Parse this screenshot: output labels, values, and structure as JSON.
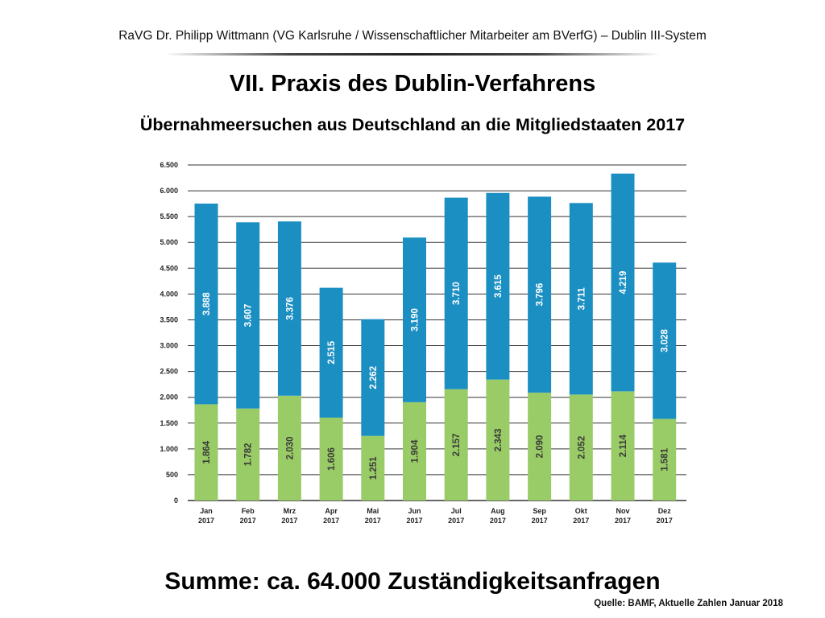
{
  "header": {
    "text": "RaVG Dr. Philipp Wittmann (VG Karlsruhe / Wissenschaftlicher Mitarbeiter am BVerfG) – Dublin III-System"
  },
  "title": "VII. Praxis des Dublin-Verfahrens",
  "subtitle": "Übernahmeersuchen aus Deutschland an die Mitgliedstaaten 2017",
  "summary": "Summe: ca. 64.000 Zuständigkeitsanfragen",
  "source": "Quelle: BAMF, Aktuelle Zahlen Januar 2018",
  "colors": {
    "green": "#99cc66",
    "blue": "#1c8fc2",
    "grid": "#333333",
    "label": "#ffffff"
  },
  "chart_data": {
    "type": "bar",
    "stacked": true,
    "categories": [
      "Jan",
      "Feb",
      "Mrz",
      "Apr",
      "Mai",
      "Jun",
      "Jul",
      "Aug",
      "Sep",
      "Okt",
      "Nov",
      "Dez"
    ],
    "year_label": "2017",
    "series": [
      {
        "color": "#99cc66",
        "values": [
          1864,
          1782,
          2030,
          1606,
          1251,
          1904,
          2157,
          2343,
          2090,
          2052,
          2114,
          1581
        ],
        "labels": [
          "1.864",
          "1.782",
          "2.030",
          "1.606",
          "1.251",
          "1.904",
          "2.157",
          "2.343",
          "2.090",
          "2.052",
          "2.114",
          "1.581"
        ]
      },
      {
        "color": "#1c8fc2",
        "values": [
          3888,
          3607,
          3376,
          2515,
          2262,
          3190,
          3710,
          3615,
          3796,
          3711,
          4219,
          3028
        ],
        "labels": [
          "3.888",
          "3.607",
          "3.376",
          "2.515",
          "2.262",
          "3.190",
          "3.710",
          "3.615",
          "3.796",
          "3.711",
          "4.219",
          "3.028"
        ]
      }
    ],
    "ylim": [
      0,
      6500
    ],
    "yticks": [
      0,
      500,
      1000,
      1500,
      2000,
      2500,
      3000,
      3500,
      4000,
      4500,
      5000,
      5500,
      6000,
      6500
    ],
    "ytick_labels": [
      "0",
      "500",
      "1.000",
      "1.500",
      "2.000",
      "2.500",
      "3.000",
      "3.500",
      "4.000",
      "4.500",
      "5.000",
      "5.500",
      "6.000",
      "6.500"
    ],
    "grid": true,
    "legend": false
  }
}
